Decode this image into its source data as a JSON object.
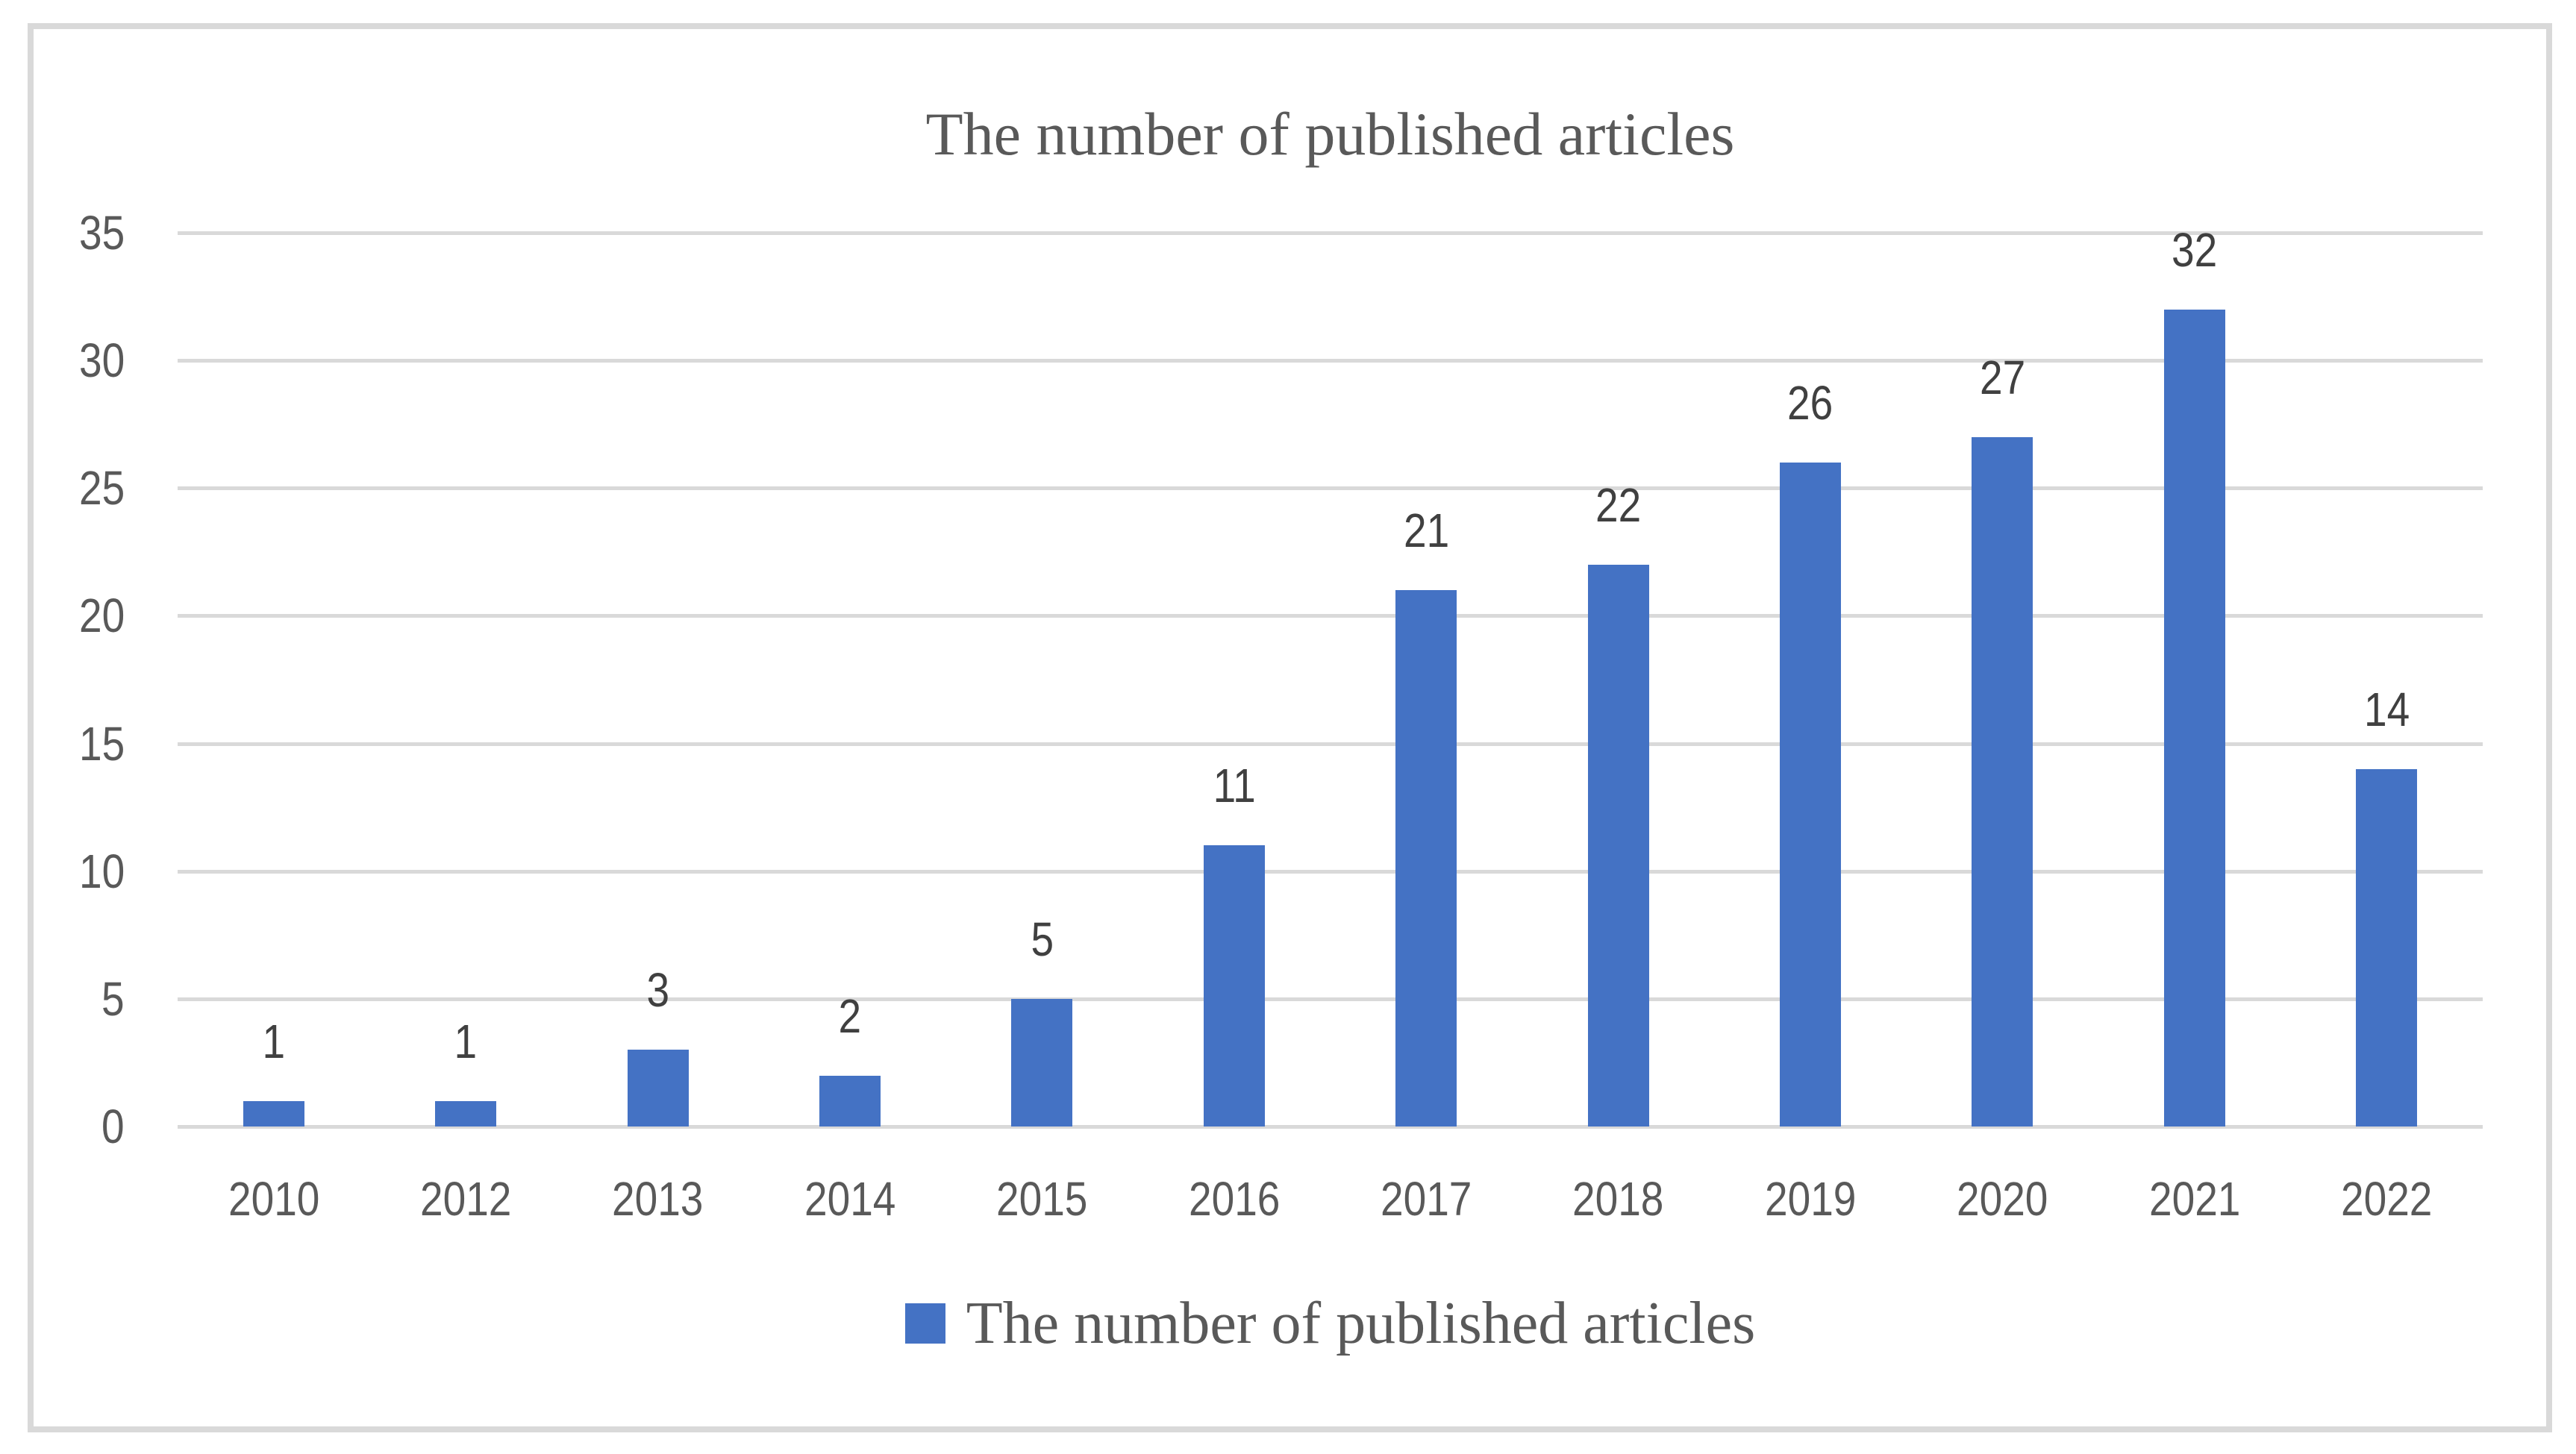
{
  "chart_data": {
    "type": "bar",
    "title": "The number of published articles",
    "series_name": "The number of published articles",
    "categories": [
      "2010",
      "2012",
      "2013",
      "2014",
      "2015",
      "2016",
      "2017",
      "2018",
      "2019",
      "2020",
      "2021",
      "2022"
    ],
    "values": [
      1,
      1,
      3,
      2,
      5,
      11,
      21,
      22,
      26,
      27,
      32,
      14
    ],
    "data_labels": [
      "1",
      "1",
      "3",
      "2",
      "5",
      "11",
      "21",
      "22",
      "26",
      "27",
      "32",
      "14"
    ],
    "yticks": [
      0,
      5,
      10,
      15,
      20,
      25,
      30,
      35
    ],
    "ylim": [
      0,
      35
    ],
    "xlabel": "",
    "ylabel": "",
    "grid": "horizontal",
    "legend_position": "bottom",
    "colors": {
      "bar": "#4472c4",
      "gridline": "#d9d9d9",
      "frame_border": "#d9d9d9",
      "axis_tick_label": "#595959",
      "data_label": "#404040",
      "title_text": "#595959",
      "legend_text": "#595959",
      "background": "#ffffff"
    }
  }
}
